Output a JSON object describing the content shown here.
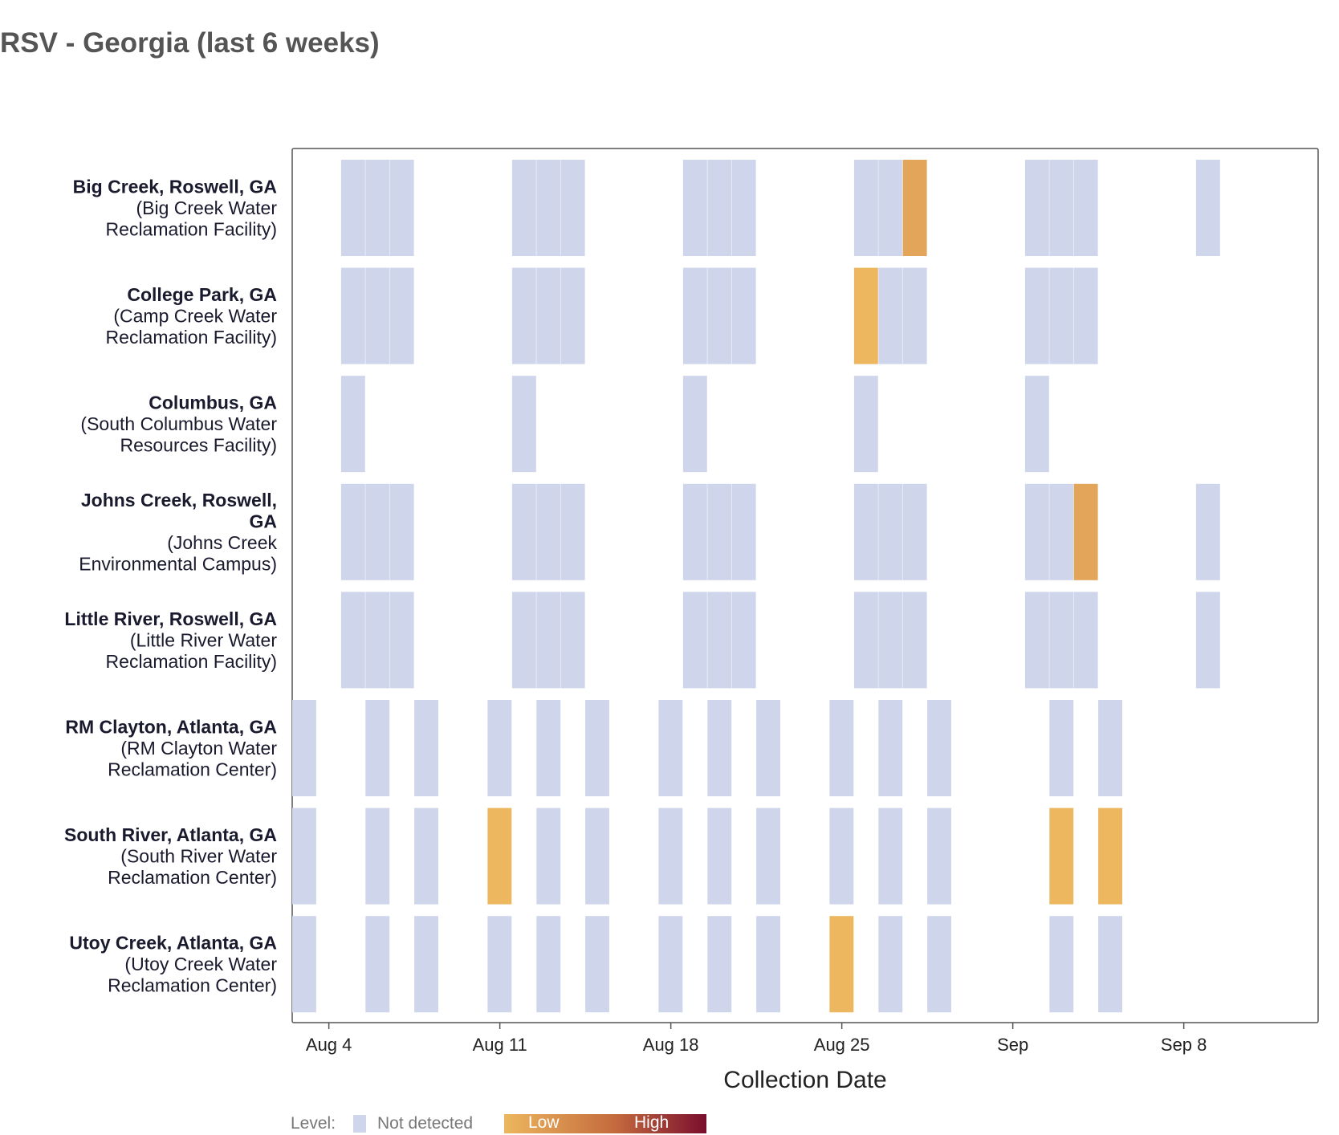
{
  "chart_data": {
    "type": "heatmap",
    "title": "RSV - Georgia (last 6 weeks)",
    "xlabel": "Collection Date",
    "x_ticks": [
      "Aug 4",
      "Aug 11",
      "Aug 18",
      "Aug 25",
      "Sep",
      "Sep 8"
    ],
    "x_tick_days": [
      4,
      11,
      18,
      25,
      32,
      39
    ],
    "x_range_days": [
      2.5,
      44.5
    ],
    "legend": {
      "label": "Level:",
      "not_detected": "Not detected",
      "low": "Low",
      "high": "High"
    },
    "colors": {
      "not_detected": "#cfd6ec",
      "low": "#ecb75e",
      "medium_low": "#e2a55a",
      "high": "#7a0e2e",
      "frame": "#555555"
    },
    "sites": [
      {
        "name_lines": [
          "Big Creek, Roswell, GA"
        ],
        "sub_lines": [
          "(Big Creek Water",
          "Reclamation Facility)"
        ],
        "samples": [
          {
            "day": 5,
            "level": "not detected"
          },
          {
            "day": 6,
            "level": "not detected"
          },
          {
            "day": 7,
            "level": "not detected"
          },
          {
            "day": 12,
            "level": "not detected"
          },
          {
            "day": 13,
            "level": "not detected"
          },
          {
            "day": 14,
            "level": "not detected"
          },
          {
            "day": 19,
            "level": "not detected"
          },
          {
            "day": 20,
            "level": "not detected"
          },
          {
            "day": 21,
            "level": "not detected"
          },
          {
            "day": 26,
            "level": "not detected"
          },
          {
            "day": 27,
            "level": "not detected"
          },
          {
            "day": 28,
            "level": "low-mid"
          },
          {
            "day": 33,
            "level": "not detected"
          },
          {
            "day": 34,
            "level": "not detected"
          },
          {
            "day": 35,
            "level": "not detected"
          },
          {
            "day": 40,
            "level": "not detected"
          }
        ]
      },
      {
        "name_lines": [
          "College Park, GA"
        ],
        "sub_lines": [
          "(Camp Creek Water",
          "Reclamation Facility)"
        ],
        "samples": [
          {
            "day": 5,
            "level": "not detected"
          },
          {
            "day": 6,
            "level": "not detected"
          },
          {
            "day": 7,
            "level": "not detected"
          },
          {
            "day": 12,
            "level": "not detected"
          },
          {
            "day": 13,
            "level": "not detected"
          },
          {
            "day": 14,
            "level": "not detected"
          },
          {
            "day": 19,
            "level": "not detected"
          },
          {
            "day": 20,
            "level": "not detected"
          },
          {
            "day": 21,
            "level": "not detected"
          },
          {
            "day": 26,
            "level": "low"
          },
          {
            "day": 27,
            "level": "not detected"
          },
          {
            "day": 28,
            "level": "not detected"
          },
          {
            "day": 33,
            "level": "not detected"
          },
          {
            "day": 34,
            "level": "not detected"
          },
          {
            "day": 35,
            "level": "not detected"
          }
        ]
      },
      {
        "name_lines": [
          "Columbus, GA"
        ],
        "sub_lines": [
          "(South Columbus Water",
          "Resources Facility)"
        ],
        "samples": [
          {
            "day": 5,
            "level": "not detected"
          },
          {
            "day": 12,
            "level": "not detected"
          },
          {
            "day": 19,
            "level": "not detected"
          },
          {
            "day": 26,
            "level": "not detected"
          },
          {
            "day": 33,
            "level": "not detected"
          }
        ]
      },
      {
        "name_lines": [
          "Johns Creek, Roswell,",
          "GA"
        ],
        "sub_lines": [
          "(Johns Creek",
          "Environmental Campus)"
        ],
        "samples": [
          {
            "day": 5,
            "level": "not detected"
          },
          {
            "day": 6,
            "level": "not detected"
          },
          {
            "day": 7,
            "level": "not detected"
          },
          {
            "day": 12,
            "level": "not detected"
          },
          {
            "day": 13,
            "level": "not detected"
          },
          {
            "day": 14,
            "level": "not detected"
          },
          {
            "day": 19,
            "level": "not detected"
          },
          {
            "day": 20,
            "level": "not detected"
          },
          {
            "day": 21,
            "level": "not detected"
          },
          {
            "day": 26,
            "level": "not detected"
          },
          {
            "day": 27,
            "level": "not detected"
          },
          {
            "day": 28,
            "level": "not detected"
          },
          {
            "day": 33,
            "level": "not detected"
          },
          {
            "day": 34,
            "level": "not detected"
          },
          {
            "day": 35,
            "level": "low-mid"
          },
          {
            "day": 40,
            "level": "not detected"
          }
        ]
      },
      {
        "name_lines": [
          "Little River, Roswell, GA"
        ],
        "sub_lines": [
          "(Little River Water",
          "Reclamation Facility)"
        ],
        "samples": [
          {
            "day": 5,
            "level": "not detected"
          },
          {
            "day": 6,
            "level": "not detected"
          },
          {
            "day": 7,
            "level": "not detected"
          },
          {
            "day": 12,
            "level": "not detected"
          },
          {
            "day": 13,
            "level": "not detected"
          },
          {
            "day": 14,
            "level": "not detected"
          },
          {
            "day": 19,
            "level": "not detected"
          },
          {
            "day": 20,
            "level": "not detected"
          },
          {
            "day": 21,
            "level": "not detected"
          },
          {
            "day": 26,
            "level": "not detected"
          },
          {
            "day": 27,
            "level": "not detected"
          },
          {
            "day": 28,
            "level": "not detected"
          },
          {
            "day": 33,
            "level": "not detected"
          },
          {
            "day": 34,
            "level": "not detected"
          },
          {
            "day": 35,
            "level": "not detected"
          },
          {
            "day": 40,
            "level": "not detected"
          }
        ]
      },
      {
        "name_lines": [
          "RM Clayton, Atlanta, GA"
        ],
        "sub_lines": [
          "(RM Clayton Water",
          "Reclamation Center)"
        ],
        "samples": [
          {
            "day": 3,
            "level": "not detected"
          },
          {
            "day": 6,
            "level": "not detected"
          },
          {
            "day": 8,
            "level": "not detected"
          },
          {
            "day": 11,
            "level": "not detected"
          },
          {
            "day": 13,
            "level": "not detected"
          },
          {
            "day": 15,
            "level": "not detected"
          },
          {
            "day": 18,
            "level": "not detected"
          },
          {
            "day": 20,
            "level": "not detected"
          },
          {
            "day": 22,
            "level": "not detected"
          },
          {
            "day": 25,
            "level": "not detected"
          },
          {
            "day": 27,
            "level": "not detected"
          },
          {
            "day": 29,
            "level": "not detected"
          },
          {
            "day": 34,
            "level": "not detected"
          },
          {
            "day": 36,
            "level": "not detected"
          }
        ]
      },
      {
        "name_lines": [
          "South River, Atlanta, GA"
        ],
        "sub_lines": [
          "(South River Water",
          "Reclamation Center)"
        ],
        "samples": [
          {
            "day": 3,
            "level": "not detected"
          },
          {
            "day": 6,
            "level": "not detected"
          },
          {
            "day": 8,
            "level": "not detected"
          },
          {
            "day": 11,
            "level": "low"
          },
          {
            "day": 13,
            "level": "not detected"
          },
          {
            "day": 15,
            "level": "not detected"
          },
          {
            "day": 18,
            "level": "not detected"
          },
          {
            "day": 20,
            "level": "not detected"
          },
          {
            "day": 22,
            "level": "not detected"
          },
          {
            "day": 25,
            "level": "not detected"
          },
          {
            "day": 27,
            "level": "not detected"
          },
          {
            "day": 29,
            "level": "not detected"
          },
          {
            "day": 34,
            "level": "low"
          },
          {
            "day": 36,
            "level": "low"
          }
        ]
      },
      {
        "name_lines": [
          "Utoy Creek, Atlanta, GA"
        ],
        "sub_lines": [
          "(Utoy Creek Water",
          "Reclamation Center)"
        ],
        "samples": [
          {
            "day": 3,
            "level": "not detected"
          },
          {
            "day": 6,
            "level": "not detected"
          },
          {
            "day": 8,
            "level": "not detected"
          },
          {
            "day": 11,
            "level": "not detected"
          },
          {
            "day": 13,
            "level": "not detected"
          },
          {
            "day": 15,
            "level": "not detected"
          },
          {
            "day": 18,
            "level": "not detected"
          },
          {
            "day": 20,
            "level": "not detected"
          },
          {
            "day": 22,
            "level": "not detected"
          },
          {
            "day": 25,
            "level": "low"
          },
          {
            "day": 27,
            "level": "not detected"
          },
          {
            "day": 29,
            "level": "not detected"
          },
          {
            "day": 34,
            "level": "not detected"
          },
          {
            "day": 36,
            "level": "not detected"
          }
        ]
      }
    ]
  }
}
